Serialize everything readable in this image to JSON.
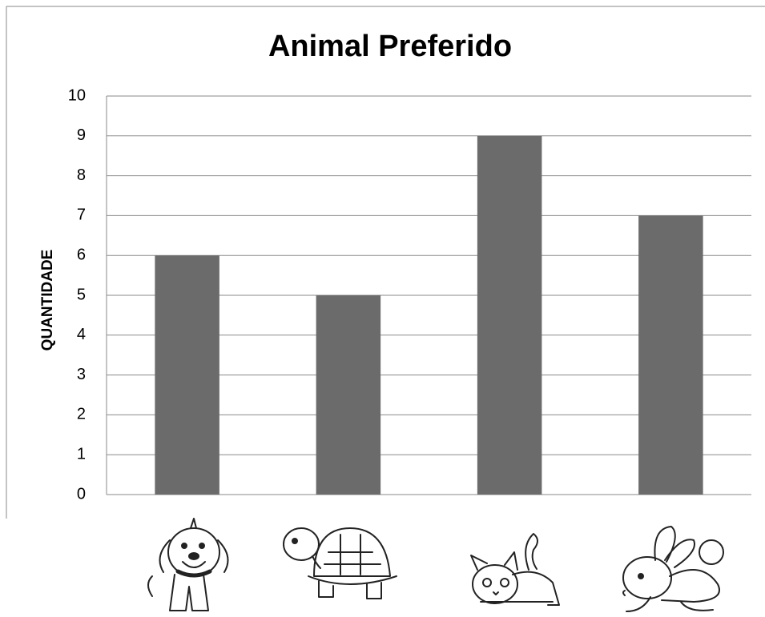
{
  "chart_data": {
    "type": "bar",
    "title": "Animal Preferido",
    "y_label": "QUANTIDADE",
    "categories": [
      null,
      null,
      null,
      null
    ],
    "values": [
      6,
      5,
      9,
      7
    ],
    "color": "#6b6b6b",
    "ylim": [
      0,
      10
    ],
    "yticks": [
      0,
      1,
      2,
      3,
      4,
      5,
      6,
      7,
      8,
      9,
      10
    ],
    "grid": true
  }
}
